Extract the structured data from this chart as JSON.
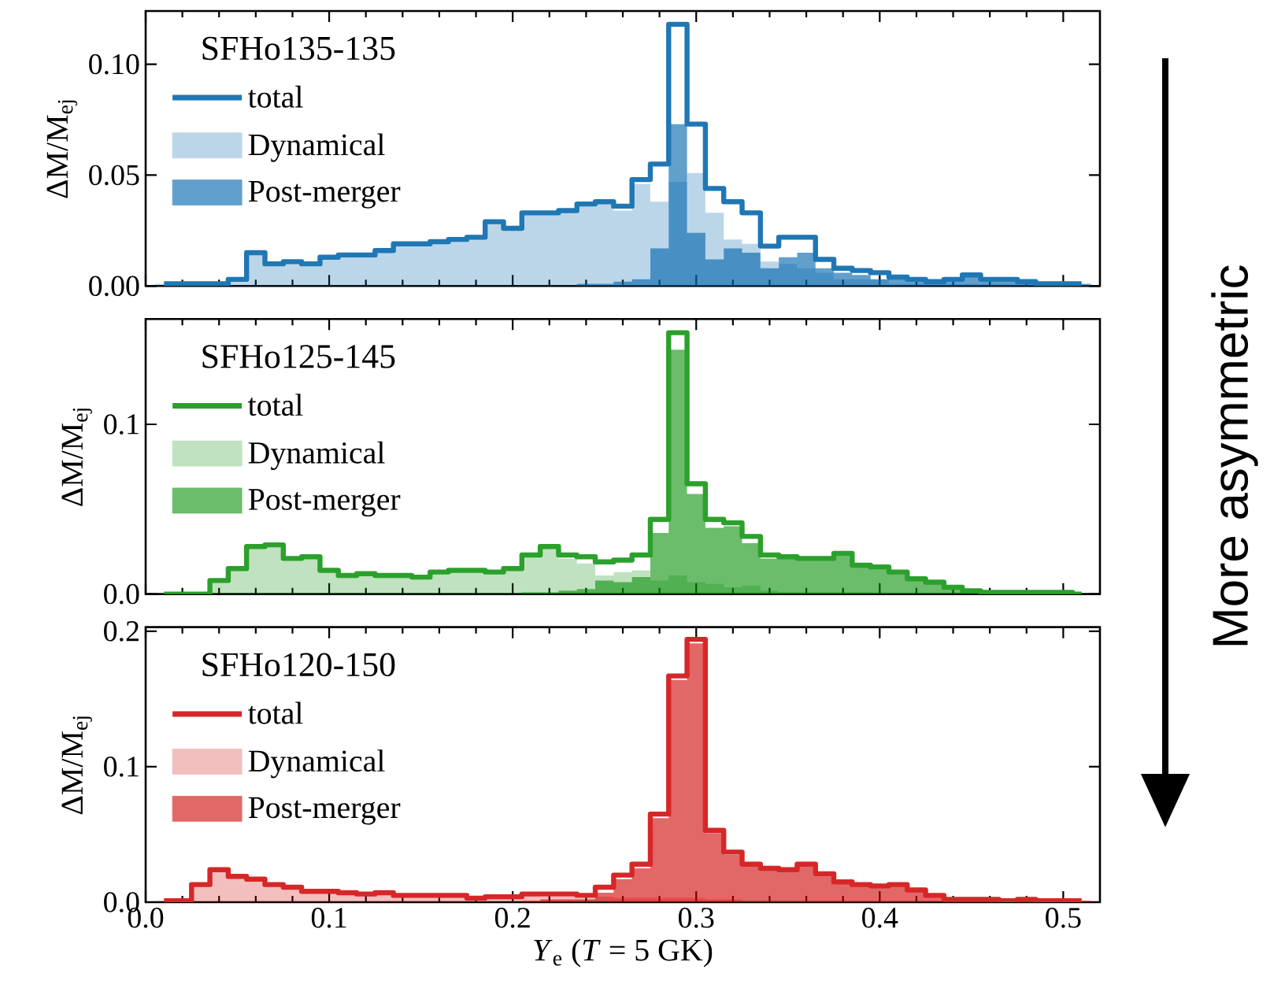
{
  "chart_data": [
    {
      "type": "histogram",
      "legend_title": "SFHo135-135",
      "ylabel": "ΔM/M$_{ej}$",
      "legend": "top left",
      "tick_labels": "y",
      "bins": [
        0.005,
        0.015,
        0.025,
        0.035,
        0.045,
        0.055,
        0.065,
        0.075,
        0.085,
        0.095,
        0.105,
        0.115,
        0.125,
        0.135,
        0.145,
        0.155,
        0.165,
        0.175,
        0.185,
        0.195,
        0.205,
        0.215,
        0.225,
        0.235,
        0.245,
        0.255,
        0.265,
        0.275,
        0.285,
        0.295,
        0.305,
        0.315,
        0.325,
        0.335,
        0.345,
        0.355,
        0.365,
        0.375,
        0.385,
        0.395,
        0.405,
        0.415,
        0.425,
        0.435,
        0.445,
        0.455,
        0.465,
        0.475,
        0.485,
        0.495,
        0.505,
        0.515
      ],
      "xlim": [
        0,
        0.52
      ],
      "xticks": [
        {
          "value": 0,
          "label": null
        },
        {
          "value": 0.1,
          "label": null
        },
        {
          "value": 0.2,
          "label": null
        },
        {
          "value": 0.3,
          "label": null
        },
        {
          "value": 0.4,
          "label": null
        },
        {
          "value": 0.5,
          "label": null
        }
      ],
      "ylim": [
        0,
        0.124
      ],
      "yticks": [
        {
          "value": 0,
          "label": "0.00"
        },
        {
          "value": 0.05,
          "label": "0.05"
        },
        {
          "value": 0.1,
          "label": "0.10"
        }
      ],
      "series": [
        {
          "name": "total",
          "type": "step",
          "color": "#1f77b4",
          "x": [
            0.01,
            0.02,
            0.03,
            0.04,
            0.05,
            0.06,
            0.07,
            0.08,
            0.09,
            0.1,
            0.11,
            0.12,
            0.13,
            0.14,
            0.15,
            0.16,
            0.17,
            0.18,
            0.19,
            0.2,
            0.21,
            0.22,
            0.23,
            0.24,
            0.25,
            0.26,
            0.27,
            0.28,
            0.29,
            0.3,
            0.31,
            0.32,
            0.33,
            0.34,
            0.35,
            0.36,
            0.37,
            0.38,
            0.39,
            0.4,
            0.41,
            0.42,
            0.43,
            0.44,
            0.45,
            0.46,
            0.47,
            0.48,
            0.49,
            0.5,
            0.51
          ],
          "values": [
            0.001,
            0.001,
            0.001,
            0.001,
            0.003,
            0.015,
            0.01,
            0.011,
            0.01,
            0.013,
            0.014,
            0.014,
            0.016,
            0.019,
            0.019,
            0.02,
            0.021,
            0.022,
            0.029,
            0.026,
            0.033,
            0.033,
            0.034,
            0.037,
            0.038,
            0.036,
            0.048,
            0.055,
            0.118,
            0.073,
            0.044,
            0.038,
            0.033,
            0.018,
            0.022,
            0.022,
            0.012,
            0.008,
            0.007,
            0.006,
            0.004,
            0.003,
            0.002,
            0.003,
            0.005,
            0.003,
            0.003,
            0.002,
            0.001,
            0.001,
            0.001
          ]
        },
        {
          "name": "Dynamical",
          "color": "#bcd6e9",
          "values": [
            0.001,
            0.001,
            0.001,
            0.001,
            0.003,
            0.015,
            0.01,
            0.011,
            0.01,
            0.013,
            0.014,
            0.014,
            0.016,
            0.019,
            0.019,
            0.02,
            0.021,
            0.022,
            0.029,
            0.026,
            0.033,
            0.033,
            0.034,
            0.036,
            0.037,
            0.034,
            0.046,
            0.038,
            0.047,
            0.051,
            0.033,
            0.021,
            0.019,
            0.011,
            0.01,
            0.008,
            0.006,
            0.003,
            0.003,
            0.003,
            0.001,
            0.001,
            0.001,
            0.001,
            0.001,
            0.001,
            0.001,
            0.001,
            0,
            0,
            0
          ]
        },
        {
          "name": "Post-merger",
          "color": "#62a0cc",
          "values": [
            0,
            0,
            0,
            0,
            0,
            0,
            0,
            0,
            0,
            0,
            0,
            0,
            0,
            0,
            0,
            0,
            0,
            0,
            0,
            0,
            0,
            0,
            0,
            0.001,
            0.001,
            0.002,
            0.003,
            0.017,
            0.073,
            0.024,
            0.012,
            0.017,
            0.015,
            0.008,
            0.013,
            0.015,
            0.008,
            0.006,
            0.005,
            0.003,
            0.003,
            0.002,
            0.002,
            0.002,
            0.004,
            0.002,
            0.002,
            0.001,
            0.001,
            0.001,
            0.001
          ]
        }
      ]
    },
    {
      "type": "histogram",
      "legend_title": "SFHo125-145",
      "ylabel": "ΔM/M$_{ej}$",
      "legend": "top left",
      "tick_labels": "y",
      "annotations": [
        "More asymmetric"
      ],
      "bins": [
        0.005,
        0.015,
        0.025,
        0.035,
        0.045,
        0.055,
        0.065,
        0.075,
        0.085,
        0.095,
        0.105,
        0.115,
        0.125,
        0.135,
        0.145,
        0.155,
        0.165,
        0.175,
        0.185,
        0.195,
        0.205,
        0.215,
        0.225,
        0.235,
        0.245,
        0.255,
        0.265,
        0.275,
        0.285,
        0.295,
        0.305,
        0.315,
        0.325,
        0.335,
        0.345,
        0.355,
        0.365,
        0.375,
        0.385,
        0.395,
        0.405,
        0.415,
        0.425,
        0.435,
        0.445,
        0.455,
        0.465,
        0.475,
        0.485,
        0.495,
        0.505,
        0.515
      ],
      "xlim": [
        0,
        0.52
      ],
      "xticks": [
        {
          "value": 0,
          "label": null
        },
        {
          "value": 0.1,
          "label": null
        },
        {
          "value": 0.2,
          "label": null
        },
        {
          "value": 0.3,
          "label": null
        },
        {
          "value": 0.4,
          "label": null
        },
        {
          "value": 0.5,
          "label": null
        }
      ],
      "ylim": [
        0,
        0.162
      ],
      "yticks": [
        {
          "value": 0,
          "label": "0.0"
        },
        {
          "value": 0.1,
          "label": "0.1"
        }
      ],
      "series": [
        {
          "name": "total",
          "type": "step",
          "color": "#2ca02c",
          "x": [
            0.01,
            0.02,
            0.03,
            0.04,
            0.05,
            0.06,
            0.07,
            0.08,
            0.09,
            0.1,
            0.11,
            0.12,
            0.13,
            0.14,
            0.15,
            0.16,
            0.17,
            0.18,
            0.19,
            0.2,
            0.21,
            0.22,
            0.23,
            0.24,
            0.25,
            0.26,
            0.27,
            0.28,
            0.29,
            0.3,
            0.31,
            0.32,
            0.33,
            0.34,
            0.35,
            0.36,
            0.37,
            0.38,
            0.39,
            0.4,
            0.41,
            0.42,
            0.43,
            0.44,
            0.45,
            0.46,
            0.47,
            0.48,
            0.49,
            0.5,
            0.51
          ],
          "values": [
            0,
            0,
            0,
            0.008,
            0.015,
            0.028,
            0.029,
            0.021,
            0.022,
            0.014,
            0.011,
            0.012,
            0.011,
            0.011,
            0.01,
            0.013,
            0.014,
            0.014,
            0.013,
            0.015,
            0.023,
            0.028,
            0.023,
            0.022,
            0.019,
            0.02,
            0.023,
            0.044,
            0.154,
            0.065,
            0.044,
            0.042,
            0.034,
            0.023,
            0.022,
            0.021,
            0.021,
            0.024,
            0.017,
            0.016,
            0.013,
            0.009,
            0.007,
            0.004,
            0.002,
            0.001,
            0.001,
            0.001,
            0.001,
            0.001,
            0
          ]
        },
        {
          "name": "Dynamical",
          "color": "#c0e2c0",
          "values": [
            0,
            0,
            0,
            0.008,
            0.015,
            0.028,
            0.029,
            0.021,
            0.022,
            0.014,
            0.011,
            0.012,
            0.011,
            0.011,
            0.01,
            0.013,
            0.014,
            0.014,
            0.013,
            0.015,
            0.022,
            0.027,
            0.021,
            0.018,
            0.011,
            0.013,
            0.014,
            0.008,
            0.011,
            0.007,
            0.006,
            0.004,
            0.005,
            0.002,
            0.001,
            0.001,
            0.001,
            0.001,
            0.001,
            0,
            0,
            0,
            0,
            0,
            0,
            0,
            0,
            0,
            0,
            0,
            0
          ]
        },
        {
          "name": "Post-merger",
          "color": "#6bbc6b",
          "values": [
            0,
            0,
            0,
            0,
            0,
            0,
            0,
            0,
            0,
            0,
            0,
            0,
            0,
            0,
            0,
            0,
            0,
            0,
            0,
            0,
            0.001,
            0.001,
            0.002,
            0.003,
            0.008,
            0.007,
            0.01,
            0.036,
            0.144,
            0.059,
            0.039,
            0.04,
            0.03,
            0.021,
            0.021,
            0.02,
            0.02,
            0.023,
            0.016,
            0.016,
            0.012,
            0.009,
            0.007,
            0.004,
            0.002,
            0.001,
            0.001,
            0.001,
            0.001,
            0.001,
            0
          ]
        }
      ]
    },
    {
      "type": "histogram",
      "legend_title": "SFHo120-150",
      "ylabel": "ΔM/M$_{ej}$",
      "xlabel": "*Y*$_{e}$ (*T* = 5 GK)",
      "legend": "top left",
      "bins": [
        0.005,
        0.015,
        0.025,
        0.035,
        0.045,
        0.055,
        0.065,
        0.075,
        0.085,
        0.095,
        0.105,
        0.115,
        0.125,
        0.135,
        0.145,
        0.155,
        0.165,
        0.175,
        0.185,
        0.195,
        0.205,
        0.215,
        0.225,
        0.235,
        0.245,
        0.255,
        0.265,
        0.275,
        0.285,
        0.295,
        0.305,
        0.315,
        0.325,
        0.335,
        0.345,
        0.355,
        0.365,
        0.375,
        0.385,
        0.395,
        0.405,
        0.415,
        0.425,
        0.435,
        0.445,
        0.455,
        0.465,
        0.475,
        0.485,
        0.495,
        0.505,
        0.515
      ],
      "xlim": [
        0,
        0.52
      ],
      "xticks": [
        {
          "value": 0,
          "label": "0.0"
        },
        {
          "value": 0.1,
          "label": "0.1"
        },
        {
          "value": 0.2,
          "label": "0.2"
        },
        {
          "value": 0.3,
          "label": "0.3"
        },
        {
          "value": 0.4,
          "label": "0.4"
        },
        {
          "value": 0.5,
          "label": "0.5"
        }
      ],
      "ylim": [
        0,
        0.203
      ],
      "yticks": [
        {
          "value": 0,
          "label": "0.0"
        },
        {
          "value": 0.1,
          "label": "0.1"
        },
        {
          "value": 0.2,
          "label": "0.2"
        }
      ],
      "series": [
        {
          "name": "total",
          "type": "step",
          "color": "#d62728",
          "x": [
            0.01,
            0.02,
            0.03,
            0.04,
            0.05,
            0.06,
            0.07,
            0.08,
            0.09,
            0.1,
            0.11,
            0.12,
            0.13,
            0.14,
            0.15,
            0.16,
            0.17,
            0.18,
            0.19,
            0.2,
            0.21,
            0.22,
            0.23,
            0.24,
            0.25,
            0.26,
            0.27,
            0.28,
            0.29,
            0.3,
            0.31,
            0.32,
            0.33,
            0.34,
            0.35,
            0.36,
            0.37,
            0.38,
            0.39,
            0.4,
            0.41,
            0.42,
            0.43,
            0.44,
            0.45,
            0.46,
            0.47,
            0.48,
            0.49,
            0.5,
            0.51
          ],
          "values": [
            0.001,
            0.001,
            0.013,
            0.024,
            0.019,
            0.017,
            0.013,
            0.011,
            0.008,
            0.008,
            0.007,
            0.006,
            0.007,
            0.005,
            0.005,
            0.005,
            0.005,
            0.003,
            0.004,
            0.004,
            0.006,
            0.006,
            0.006,
            0.005,
            0.011,
            0.02,
            0.028,
            0.065,
            0.167,
            0.194,
            0.053,
            0.037,
            0.028,
            0.025,
            0.024,
            0.028,
            0.021,
            0.015,
            0.013,
            0.012,
            0.013,
            0.009,
            0.005,
            0.002,
            0.002,
            0.002,
            0.001,
            0.002,
            0.001,
            0.001,
            0.001
          ]
        },
        {
          "name": "Dynamical",
          "color": "#f3bebe",
          "values": [
            0.001,
            0.001,
            0.013,
            0.024,
            0.019,
            0.017,
            0.013,
            0.011,
            0.008,
            0.008,
            0.007,
            0.006,
            0.007,
            0.005,
            0.005,
            0.005,
            0.005,
            0.003,
            0.004,
            0.004,
            0.005,
            0.004,
            0.004,
            0.003,
            0.004,
            0.003,
            0.003,
            0.003,
            0.003,
            0.003,
            0.002,
            0.002,
            0.001,
            0.001,
            0.001,
            0,
            0,
            0,
            0,
            0,
            0,
            0,
            0,
            0,
            0,
            0,
            0,
            0,
            0,
            0,
            0
          ]
        },
        {
          "name": "Post-merger",
          "color": "#e26868",
          "values": [
            0,
            0,
            0,
            0,
            0,
            0,
            0,
            0,
            0,
            0,
            0,
            0,
            0,
            0,
            0,
            0,
            0,
            0,
            0,
            0,
            0.001,
            0.002,
            0.002,
            0.002,
            0.007,
            0.017,
            0.025,
            0.062,
            0.164,
            0.191,
            0.051,
            0.035,
            0.027,
            0.024,
            0.023,
            0.028,
            0.021,
            0.015,
            0.013,
            0.012,
            0.013,
            0.009,
            0.005,
            0.002,
            0.002,
            0.002,
            0.001,
            0.002,
            0.001,
            0.001,
            0.001
          ]
        }
      ]
    }
  ]
}
